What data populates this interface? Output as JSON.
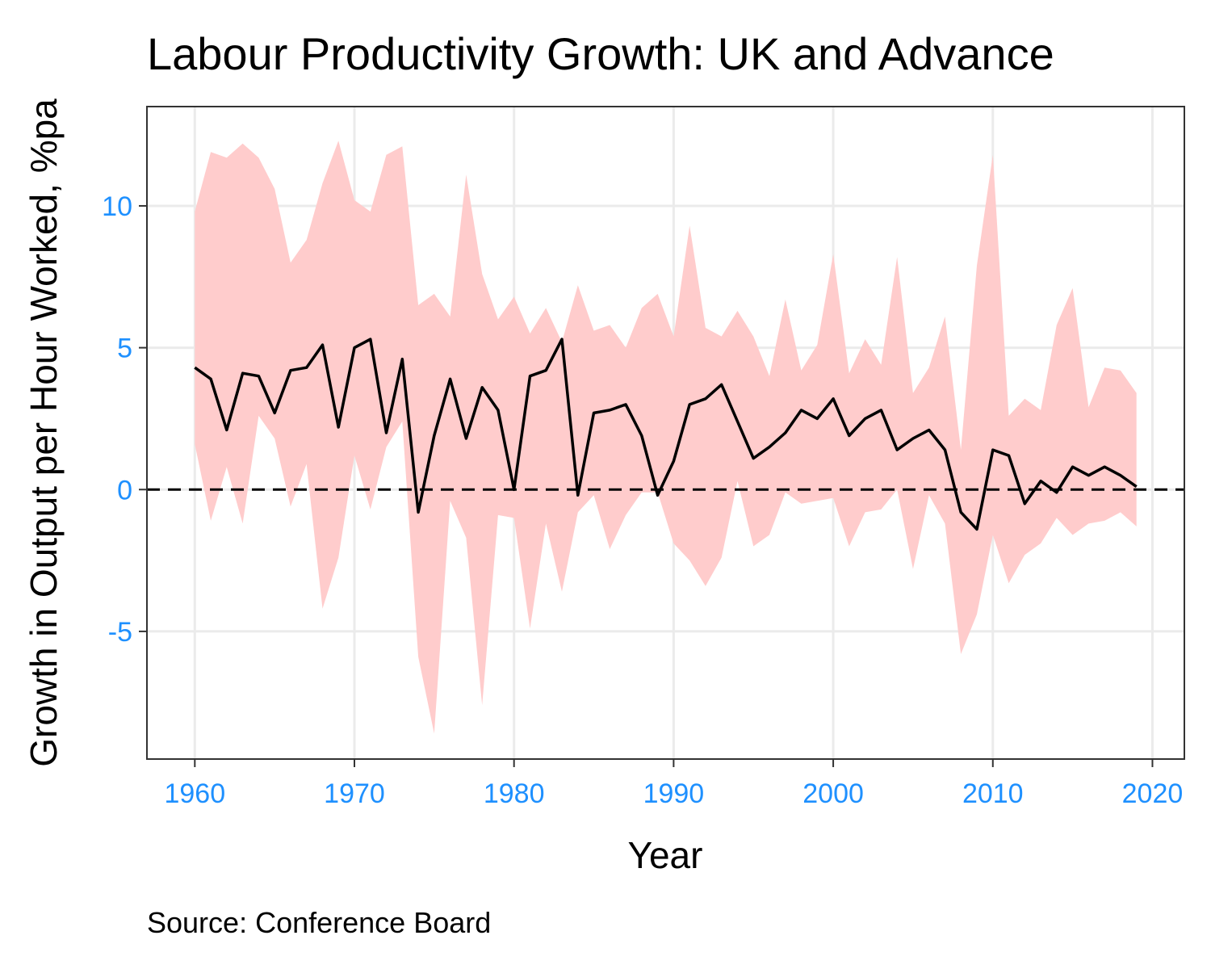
{
  "chart_data": {
    "type": "area",
    "title": "Labour Productivity Growth: UK and Advance",
    "xlabel": "Year",
    "ylabel": "Growth in Output per Hour Worked, %pa",
    "caption": "Source: Conference Board",
    "xlim": [
      1957,
      2022
    ],
    "ylim": [
      -9.5,
      13.5
    ],
    "x_ticks": [
      1960,
      1970,
      1980,
      1990,
      2000,
      2010,
      2020
    ],
    "y_ticks": [
      -5,
      0,
      5,
      10
    ],
    "grid": true,
    "reference_line": {
      "y": 0,
      "style": "dashed"
    },
    "colors": {
      "band": "#ffcccc",
      "line": "#000000",
      "tick_label": "#1e90ff",
      "grid": "#ebebeb",
      "frame": "#333333"
    },
    "x": [
      1960,
      1961,
      1962,
      1963,
      1964,
      1965,
      1966,
      1967,
      1968,
      1969,
      1970,
      1971,
      1972,
      1973,
      1974,
      1975,
      1976,
      1977,
      1978,
      1979,
      1980,
      1981,
      1982,
      1983,
      1984,
      1985,
      1986,
      1987,
      1988,
      1989,
      1990,
      1991,
      1992,
      1993,
      1994,
      1995,
      1996,
      1997,
      1998,
      1999,
      2000,
      2001,
      2002,
      2003,
      2004,
      2005,
      2006,
      2007,
      2008,
      2009,
      2010,
      2011,
      2012,
      2013,
      2014,
      2015,
      2016,
      2017,
      2018,
      2019
    ],
    "series": [
      {
        "values": [
          4.3,
          3.9,
          2.1,
          4.1,
          4.0,
          2.7,
          4.2,
          4.3,
          5.1,
          2.2,
          5.0,
          5.3,
          2.0,
          4.6,
          -0.8,
          1.9,
          3.9,
          1.8,
          3.6,
          2.8,
          0.0,
          4.0,
          4.2,
          5.3,
          -0.2,
          2.7,
          2.8,
          3.0,
          1.9,
          -0.2,
          1.0,
          3.0,
          3.2,
          3.7,
          2.4,
          1.1,
          1.5,
          2.0,
          2.8,
          2.5,
          3.2,
          1.9,
          2.5,
          2.8,
          1.4,
          1.8,
          2.1,
          1.4,
          -0.8,
          -1.4,
          1.4,
          1.2,
          -0.5,
          0.3,
          -0.1,
          0.8,
          0.5,
          0.8,
          0.5,
          0.1
        ]
      },
      {
        "upper": [
          9.8,
          11.9,
          11.7,
          12.2,
          11.7,
          10.6,
          8.0,
          8.8,
          10.8,
          12.3,
          10.2,
          9.8,
          11.8,
          12.1,
          6.5,
          6.9,
          6.1,
          11.1,
          7.6,
          6.0,
          6.8,
          5.5,
          6.4,
          5.2,
          7.2,
          5.6,
          5.8,
          5.0,
          6.4,
          6.9,
          5.4,
          9.3,
          5.7,
          5.4,
          6.3,
          5.4,
          4.0,
          6.7,
          4.2,
          5.1,
          8.3,
          4.1,
          5.3,
          4.4,
          8.2,
          3.4,
          4.3,
          6.1,
          1.4,
          7.9,
          11.8,
          2.6,
          3.2,
          2.8,
          5.8,
          7.1,
          2.9,
          4.3,
          4.2,
          3.4
        ],
        "lower": [
          1.6,
          -1.1,
          0.8,
          -1.2,
          2.6,
          1.8,
          -0.6,
          0.9,
          -4.2,
          -2.4,
          1.2,
          -0.7,
          1.5,
          2.4,
          -5.9,
          -8.6,
          -0.4,
          -1.7,
          -7.6,
          -0.9,
          -1.0,
          -4.9,
          -1.2,
          -3.6,
          -0.8,
          -0.2,
          -2.1,
          -0.9,
          -0.1,
          -0.1,
          -1.9,
          -2.5,
          -3.4,
          -2.4,
          0.3,
          -2.0,
          -1.6,
          -0.1,
          -0.5,
          -0.4,
          -0.3,
          -2.0,
          -0.8,
          -0.7,
          0.0,
          -2.8,
          -0.2,
          -1.2,
          -5.8,
          -4.4,
          -1.6,
          -3.3,
          -2.3,
          -1.9,
          -1.0,
          -1.6,
          -1.2,
          -1.1,
          -0.8,
          -1.3
        ]
      }
    ]
  }
}
